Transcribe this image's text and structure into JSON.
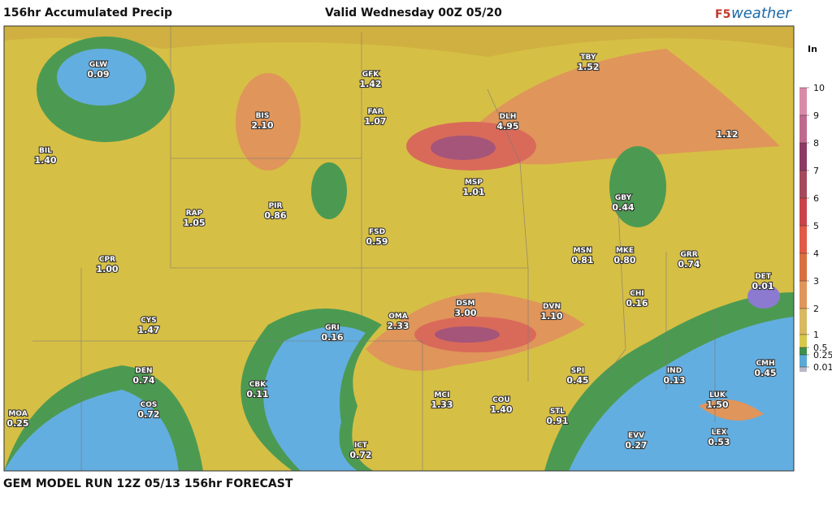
{
  "header": {
    "title": "156hr Accumulated Precip",
    "valid": "Valid Wednesday 00Z 05/20",
    "logo_prefix": "F5",
    "logo": "weather"
  },
  "legend": {
    "unit": "In",
    "ticks": [
      10,
      9,
      8,
      7,
      6,
      5,
      4,
      3,
      2,
      1,
      0.5,
      0.25,
      0.01
    ],
    "colors": [
      "#d98aa8",
      "#c0698f",
      "#8c3a63",
      "#a54a5c",
      "#c8444a",
      "#e05a45",
      "#d97040",
      "#e0955a",
      "#d8b860",
      "#d6c84a",
      "#3f8f4a",
      "#5aa9d6",
      "#b8b8c8"
    ]
  },
  "stations": [
    {
      "code": "GLW",
      "value": "0.09"
    },
    {
      "code": "GFK",
      "value": "1.42"
    },
    {
      "code": "TBY",
      "value": "1.52"
    },
    {
      "code": "BIS",
      "value": "2.10"
    },
    {
      "code": "FAR",
      "value": "1.07"
    },
    {
      "code": "DLH",
      "value": "4.95"
    },
    {
      "value": "1.12"
    },
    {
      "code": "BIL",
      "value": "1.40"
    },
    {
      "code": "MSP",
      "value": "1.01"
    },
    {
      "code": "GBY",
      "value": "0.44"
    },
    {
      "code": "RAP",
      "value": "1.05"
    },
    {
      "code": "PIR",
      "value": "0.86"
    },
    {
      "code": "FSD",
      "value": "0.59"
    },
    {
      "code": "MSN",
      "value": "0.81"
    },
    {
      "code": "MKE",
      "value": "0.80"
    },
    {
      "code": "GRR",
      "value": "0.74"
    },
    {
      "code": "CPR",
      "value": "1.00"
    },
    {
      "code": "DET",
      "value": "0.01"
    },
    {
      "code": "CHI",
      "value": "0.16"
    },
    {
      "code": "DSM",
      "value": "3.00"
    },
    {
      "code": "DVN",
      "value": "1.10"
    },
    {
      "code": "OMA",
      "value": "2.33"
    },
    {
      "code": "CYS",
      "value": "1.47"
    },
    {
      "code": "GRI",
      "value": "0.16"
    },
    {
      "code": "DEN",
      "value": "0.74"
    },
    {
      "code": "SPI",
      "value": "0.45"
    },
    {
      "code": "IND",
      "value": "0.13"
    },
    {
      "code": "CMH",
      "value": "0.45"
    },
    {
      "code": "CBK",
      "value": "0.11"
    },
    {
      "code": "MCI",
      "value": "1.33"
    },
    {
      "code": "COU",
      "value": "1.40"
    },
    {
      "code": "STL",
      "value": "0.91"
    },
    {
      "code": "LUK",
      "value": "1.50"
    },
    {
      "code": "COS",
      "value": "0.72"
    },
    {
      "code": "MOA",
      "value": "0.25"
    },
    {
      "code": "LEX",
      "value": "0.53"
    },
    {
      "code": "EVV",
      "value": "0.27"
    },
    {
      "code": "ICT",
      "value": "0.72"
    }
  ],
  "footer": "GEM MODEL RUN 12Z 05/13 156hr FORECAST"
}
